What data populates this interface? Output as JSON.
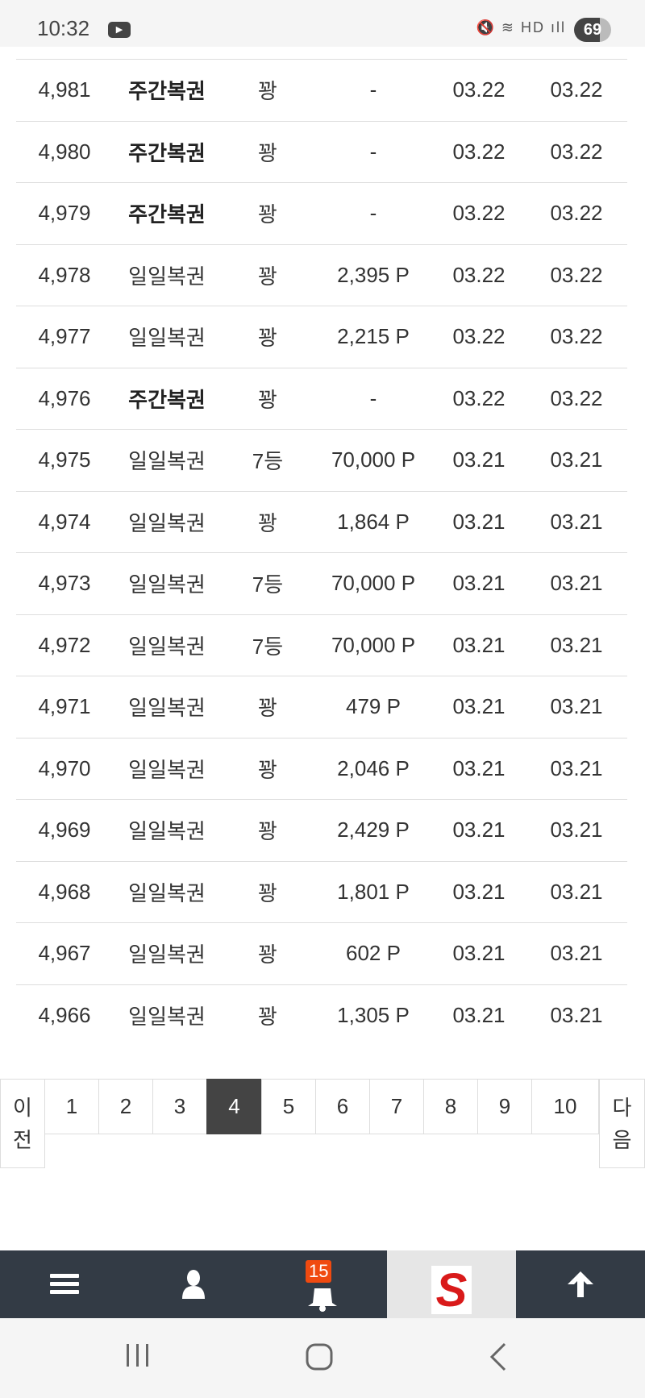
{
  "status_bar": {
    "time": "10:32",
    "battery": "69"
  },
  "rows": [
    {
      "no": "4,981",
      "type": "주간복권",
      "bold": true,
      "rank": "꽝",
      "points": "-",
      "date1": "03.22",
      "date2": "03.22"
    },
    {
      "no": "4,980",
      "type": "주간복권",
      "bold": true,
      "rank": "꽝",
      "points": "-",
      "date1": "03.22",
      "date2": "03.22"
    },
    {
      "no": "4,979",
      "type": "주간복권",
      "bold": true,
      "rank": "꽝",
      "points": "-",
      "date1": "03.22",
      "date2": "03.22"
    },
    {
      "no": "4,978",
      "type": "일일복권",
      "bold": false,
      "rank": "꽝",
      "points": "2,395 P",
      "date1": "03.22",
      "date2": "03.22"
    },
    {
      "no": "4,977",
      "type": "일일복권",
      "bold": false,
      "rank": "꽝",
      "points": "2,215 P",
      "date1": "03.22",
      "date2": "03.22"
    },
    {
      "no": "4,976",
      "type": "주간복권",
      "bold": true,
      "rank": "꽝",
      "points": "-",
      "date1": "03.22",
      "date2": "03.22"
    },
    {
      "no": "4,975",
      "type": "일일복권",
      "bold": false,
      "rank": "7등",
      "points": "70,000 P",
      "date1": "03.21",
      "date2": "03.21"
    },
    {
      "no": "4,974",
      "type": "일일복권",
      "bold": false,
      "rank": "꽝",
      "points": "1,864 P",
      "date1": "03.21",
      "date2": "03.21"
    },
    {
      "no": "4,973",
      "type": "일일복권",
      "bold": false,
      "rank": "7등",
      "points": "70,000 P",
      "date1": "03.21",
      "date2": "03.21"
    },
    {
      "no": "4,972",
      "type": "일일복권",
      "bold": false,
      "rank": "7등",
      "points": "70,000 P",
      "date1": "03.21",
      "date2": "03.21"
    },
    {
      "no": "4,971",
      "type": "일일복권",
      "bold": false,
      "rank": "꽝",
      "points": "479 P",
      "date1": "03.21",
      "date2": "03.21"
    },
    {
      "no": "4,970",
      "type": "일일복권",
      "bold": false,
      "rank": "꽝",
      "points": "2,046 P",
      "date1": "03.21",
      "date2": "03.21"
    },
    {
      "no": "4,969",
      "type": "일일복권",
      "bold": false,
      "rank": "꽝",
      "points": "2,429 P",
      "date1": "03.21",
      "date2": "03.21"
    },
    {
      "no": "4,968",
      "type": "일일복권",
      "bold": false,
      "rank": "꽝",
      "points": "1,801 P",
      "date1": "03.21",
      "date2": "03.21"
    },
    {
      "no": "4,967",
      "type": "일일복권",
      "bold": false,
      "rank": "꽝",
      "points": "602 P",
      "date1": "03.21",
      "date2": "03.21"
    },
    {
      "no": "4,966",
      "type": "일일복권",
      "bold": false,
      "rank": "꽝",
      "points": "1,305 P",
      "date1": "03.21",
      "date2": "03.21"
    }
  ],
  "pagination": {
    "prev": "이전",
    "next": "다음",
    "pages": [
      "1",
      "2",
      "3",
      "4",
      "5",
      "6",
      "7",
      "8",
      "9",
      "10"
    ],
    "current": "4"
  },
  "bottom_nav": {
    "notification_count": "15",
    "logo_color": "#d91a1a",
    "bg": "#333b45"
  }
}
